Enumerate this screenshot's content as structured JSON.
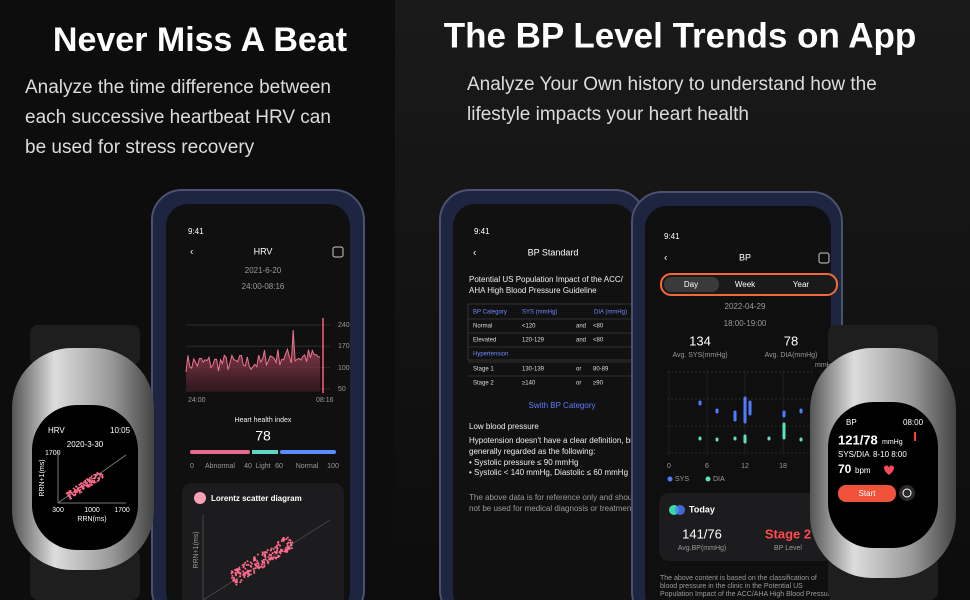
{
  "left": {
    "title": "Never Miss A Beat",
    "subtitle": [
      "Analyze the time difference between",
      "each successive heartbeat HRV can",
      "be used for stress recovery"
    ],
    "phone": {
      "time": "9:41",
      "title": "HRV",
      "date": "2021-6-20",
      "range": "24:00-08:16",
      "y_labels": [
        "240",
        "170",
        "100",
        "50"
      ],
      "x_labels": [
        "24:00",
        "08:16"
      ],
      "index_label": "Heart health index",
      "index_value": "78",
      "scale": [
        "0",
        "Abnormal",
        "40",
        "Light",
        "60",
        "Normal",
        "100"
      ],
      "card_title": "Lorentz scatter diagram",
      "card_axis": "RRN+1(ms)"
    },
    "watch": {
      "label": "HRV",
      "time": "10:05",
      "date": "2020-3-30",
      "y_top": "1700",
      "x_labels": [
        "300",
        "1000",
        "1700"
      ],
      "x_axis": "RRN(ms)",
      "y_axis": "RRN+1(ms)"
    }
  },
  "right": {
    "title": "The BP Level Trends on App",
    "subtitle": [
      "Analyze Your Own history to understand how the",
      "lifestyle impacts your heart health"
    ],
    "phone_a": {
      "time": "9:41",
      "title": "BP Standard",
      "intro": [
        "Potential US Population Impact of the ACC/",
        "AHA High Blood Pressure Guideline"
      ],
      "table": {
        "header": [
          "BP Category",
          "SYS (mmHg)",
          "DIA (mmHg)"
        ],
        "rows": [
          [
            "Normal",
            "<120",
            "and",
            "<80"
          ],
          [
            "Elevated",
            "120-129",
            "and",
            "<80"
          ],
          [
            "Hypertension"
          ],
          [
            "Stage 1",
            "130-139",
            "or",
            "80-89"
          ],
          [
            "Stage 2",
            "≥140",
            "or",
            "≥90"
          ]
        ]
      },
      "switch": "Swith BP Category",
      "low_title": "Low blood pressure",
      "low_text": [
        "Hypotension doesn't have a clear definition, but i",
        "generally regarded as the following:",
        "• Systolic pressure ≤ 90 mmHg",
        "• Systolic < 140 mmHg, Diastolic ≤ 60 mmHg"
      ],
      "note": [
        "The above data is for reference only and should",
        "not be used for medical diagnosis or treatment."
      ]
    },
    "phone_b": {
      "time": "9:41",
      "title": "BP",
      "tabs": [
        "Day",
        "Week",
        "Year"
      ],
      "date": "2022-04-29",
      "range": "18:00-19:00",
      "sys": "134",
      "sys_label": "Avg. SYS(mmHg)",
      "dia": "78",
      "dia_label": "Avg. DIA(mmHg)",
      "unit": "mmHg",
      "x_labels": [
        "0",
        "6",
        "12",
        "18"
      ],
      "legend": [
        "SYS",
        "DIA"
      ],
      "today": "Today",
      "avg": "141/76",
      "avg_label": "Avg.BP(mmHg)",
      "level": "Stage 2",
      "level_label": "BP Level",
      "footer": [
        "The above content is based on the classification of",
        "blood pressure in the clinic in the Potential US",
        "Population Impact of the ACC/AHA High Blood Pressure"
      ]
    },
    "watch": {
      "label": "BP",
      "time": "08:00",
      "reading": "121/78",
      "unit": "mmHg",
      "reading_label": "SYS/DIA",
      "when": "8-10 8:00",
      "pulse": "70",
      "pulse_unit": "bpm",
      "button": "Start"
    }
  }
}
